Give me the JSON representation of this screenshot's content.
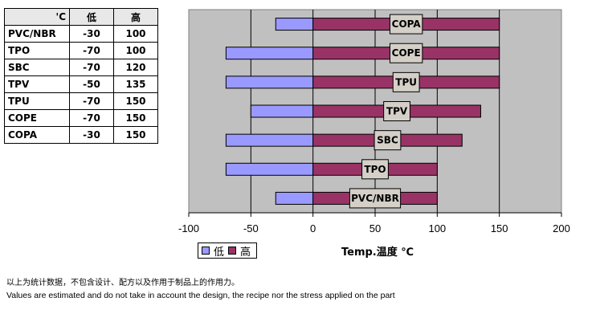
{
  "table": {
    "headers": [
      "'C",
      "低",
      "高"
    ],
    "rows": [
      {
        "material": "PVC/NBR",
        "low": "-30",
        "high": "100"
      },
      {
        "material": "TPO",
        "low": "-70",
        "high": "100"
      },
      {
        "material": "SBC",
        "low": "-70",
        "high": "120"
      },
      {
        "material": "TPV",
        "low": "-50",
        "high": "135"
      },
      {
        "material": "TPU",
        "low": "-70",
        "high": "150"
      },
      {
        "material": "COPE",
        "low": "-70",
        "high": "150"
      },
      {
        "material": "COPA",
        "low": "-30",
        "high": "150"
      }
    ]
  },
  "chart_data": {
    "type": "bar",
    "orientation": "horizontal",
    "categories": [
      "PVC/NBR",
      "TPO",
      "SBC",
      "TPV",
      "TPU",
      "COPE",
      "COPA"
    ],
    "series": [
      {
        "name": "低",
        "values": [
          -30,
          -70,
          -70,
          -50,
          -70,
          -70,
          -30
        ],
        "color": "#9999ff"
      },
      {
        "name": "高",
        "values": [
          100,
          100,
          120,
          135,
          150,
          150,
          150
        ],
        "color": "#993366"
      }
    ],
    "xlabel": "Temp.温度 ℃",
    "xlim": [
      -100,
      200
    ],
    "xticks": [
      "-100",
      "-50",
      "0",
      "50",
      "100",
      "150",
      "200"
    ],
    "grid": true,
    "legend": "bottom-left",
    "plot_background": "#c0c0c0"
  },
  "legend": {
    "low": "低",
    "high": "高"
  },
  "notes": {
    "cn": "以上为统计数据，不包含设计、配方以及作用于制品上的作用力。",
    "en": "Values are estimated and do not take in account the design, the recipe nor the stress applied on the part"
  }
}
